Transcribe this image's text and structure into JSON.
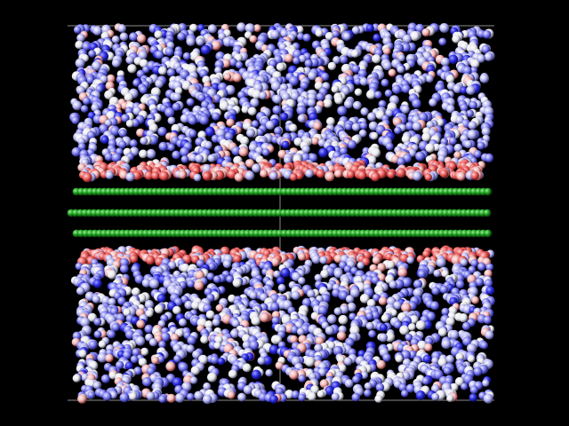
{
  "viewer": {
    "background_color": "#000000",
    "box_edge_color": "#8a8a8a"
  },
  "colors": {
    "electrode": "#1fa01f",
    "electrode_highlight": "#9cf09c",
    "electrode_shadow": "#063806",
    "near_surface_red": "#e85050",
    "blue": "#4a4ae8",
    "white": "#f2f2f6",
    "red": "#e07070"
  },
  "layers": {
    "upper_electrolyte": {
      "icon": "sphere-cluster",
      "palette": "blue-white-red"
    },
    "electrode_rows": {
      "icon": "sphere-row",
      "rows": 3
    },
    "lower_electrolyte": {
      "icon": "sphere-cluster",
      "palette": "blue-white-red"
    }
  }
}
